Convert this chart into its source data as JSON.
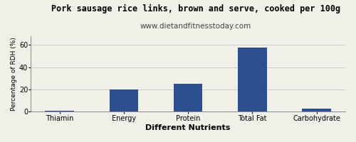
{
  "title": "Pork sausage rice links, brown and serve, cooked per 100g",
  "subtitle": "www.dietandfitnesstoday.com",
  "categories": [
    "Thiamin",
    "Energy",
    "Protein",
    "Total Fat",
    "Carbohydrate"
  ],
  "values": [
    0.5,
    20,
    25,
    58,
    2.5
  ],
  "bar_color": "#2d4f8e",
  "xlabel": "Different Nutrients",
  "ylabel": "Percentage of RDH (%)",
  "ylim": [
    0,
    68
  ],
  "yticks": [
    0,
    20,
    40,
    60
  ],
  "background_color": "#f0f0e8",
  "plot_bg_color": "#f0f0e8",
  "title_fontsize": 8.5,
  "subtitle_fontsize": 7.5,
  "xlabel_fontsize": 8,
  "ylabel_fontsize": 6.5,
  "tick_fontsize": 7,
  "grid_color": "#c8c8c8",
  "spine_color": "#888888"
}
